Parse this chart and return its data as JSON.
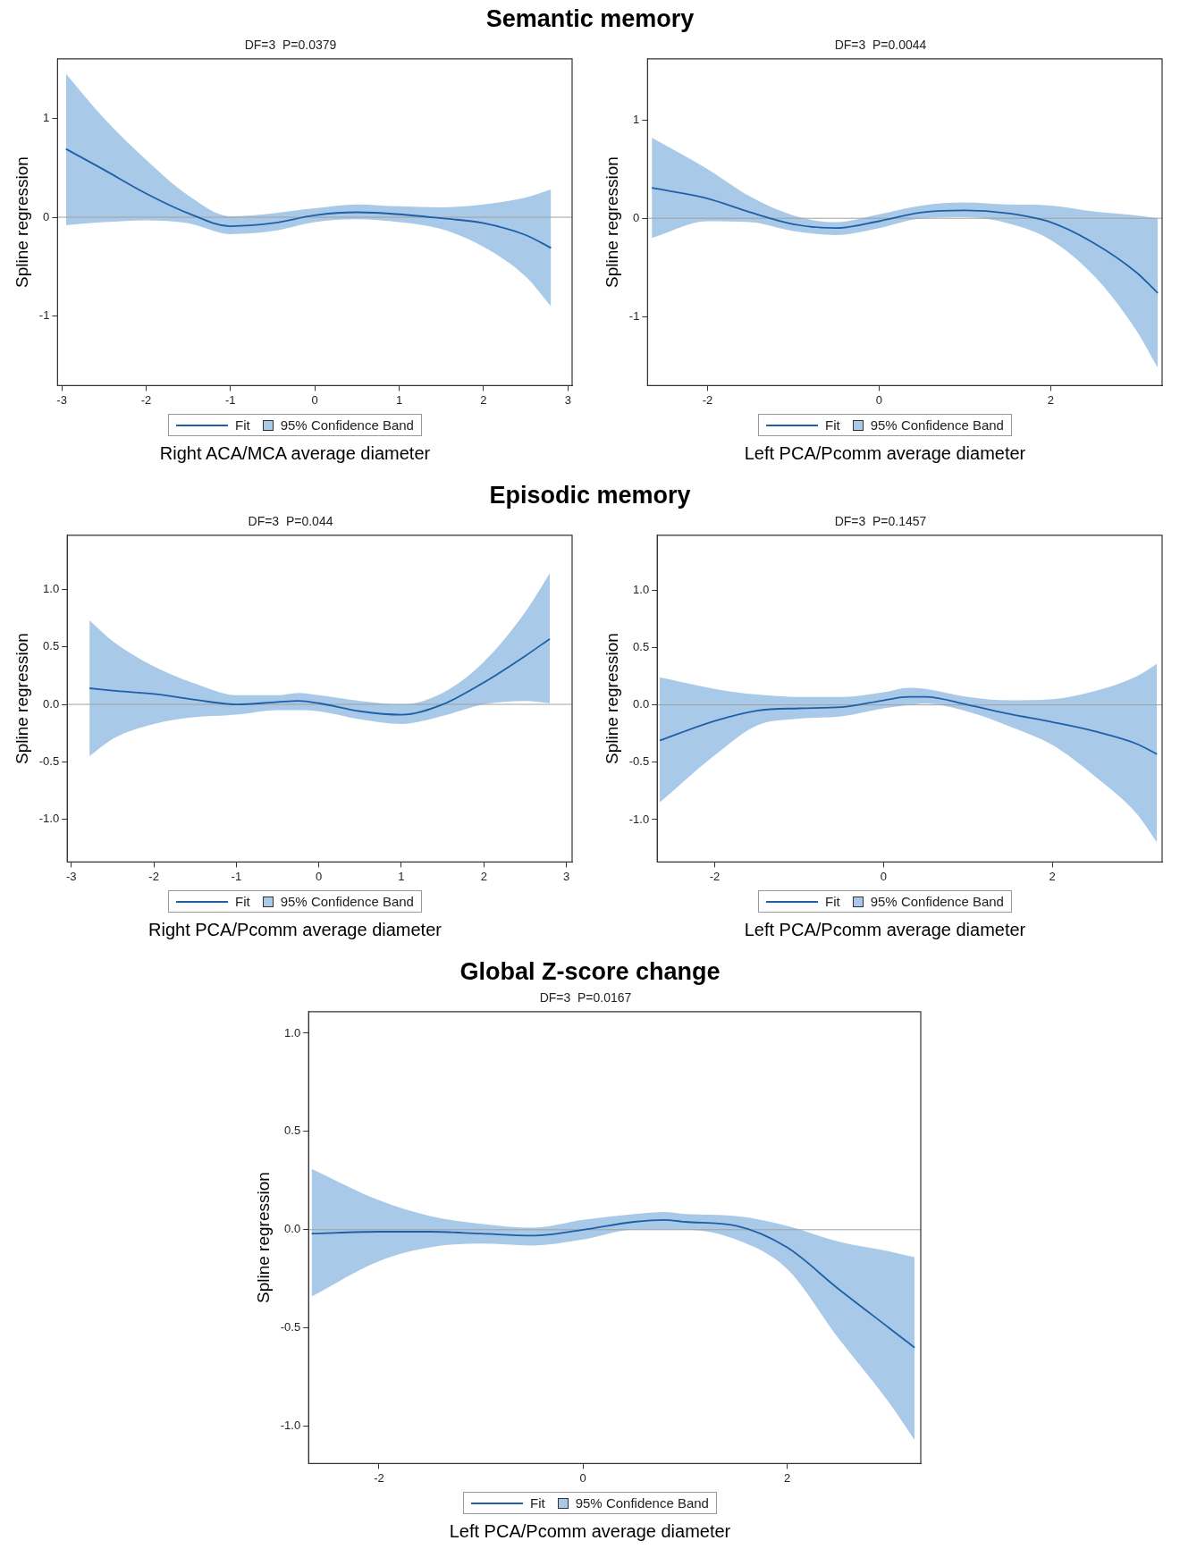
{
  "chart_data": [
    {
      "type": "line",
      "title": "Semantic memory",
      "subtitle": "DF=3  P=0.0379",
      "xlabel": "Right ACA/MCA average diameter",
      "ylabel": "Spline regression",
      "legend": "bottom",
      "grid": false,
      "annotations": [
        "95% Confidence Band"
      ],
      "x": [
        -2.95,
        -2.5,
        -2,
        -1.5,
        -1,
        -0.5,
        0,
        0.5,
        1,
        1.5,
        2,
        2.5,
        2.8
      ],
      "series": [
        {
          "name": "Fit",
          "color": "#1f5fa8",
          "values": [
            0.69,
            0.48,
            0.24,
            0.04,
            -0.09,
            -0.06,
            0.02,
            0.05,
            0.03,
            -0.01,
            -0.06,
            -0.18,
            -0.31
          ],
          "lower": [
            -0.08,
            -0.05,
            -0.03,
            -0.06,
            -0.17,
            -0.14,
            -0.05,
            -0.02,
            -0.05,
            -0.12,
            -0.3,
            -0.6,
            -0.9
          ],
          "upper": [
            1.45,
            1.0,
            0.58,
            0.22,
            0.01,
            0.04,
            0.09,
            0.13,
            0.11,
            0.1,
            0.13,
            0.2,
            0.28
          ]
        }
      ],
      "xlim": [
        -3.05,
        3.05
      ],
      "ylim": [
        -1.7,
        1.6
      ],
      "xticks": [
        -3,
        -2,
        -1,
        0,
        1,
        2,
        3
      ],
      "yticks": [
        -1,
        0,
        1
      ],
      "ref_lines": [
        {
          "axis": "y",
          "value": 0,
          "color": "#a0a0a0"
        }
      ]
    },
    {
      "type": "line",
      "subtitle": "DF=3  P=0.0044",
      "xlabel": "Left PCA/Pcomm average diameter",
      "ylabel": "Spline regression",
      "legend": "bottom",
      "grid": false,
      "annotations": [
        "95% Confidence Band"
      ],
      "x": [
        -2.65,
        -2,
        -1.5,
        -1,
        -0.5,
        0,
        0.5,
        1,
        1.5,
        2,
        2.5,
        3,
        3.25
      ],
      "series": [
        {
          "name": "Fit",
          "color": "#1f5fa8",
          "values": [
            0.31,
            0.2,
            0.06,
            -0.06,
            -0.1,
            -0.03,
            0.06,
            0.08,
            0.05,
            -0.04,
            -0.25,
            -0.55,
            -0.76
          ],
          "lower": [
            -0.2,
            -0.03,
            -0.04,
            -0.13,
            -0.17,
            -0.1,
            0,
            0.01,
            -0.05,
            -0.22,
            -0.58,
            -1.14,
            -1.52
          ],
          "upper": [
            0.82,
            0.5,
            0.22,
            0.03,
            -0.04,
            0.04,
            0.13,
            0.16,
            0.14,
            0.13,
            0.07,
            0.03,
            0
          ]
        }
      ],
      "xlim": [
        -2.7,
        3.3
      ],
      "ylim": [
        -1.7,
        1.62
      ],
      "xticks": [
        -2,
        0,
        2
      ],
      "yticks": [
        -1,
        0,
        1
      ],
      "ref_lines": [
        {
          "axis": "y",
          "value": 0,
          "color": "#a0a0a0"
        }
      ]
    },
    {
      "type": "line",
      "title": "Episodic memory",
      "subtitle": "DF=3  P=0.044",
      "xlabel": "Right PCA/Pcomm average diameter",
      "ylabel": "Spline regression",
      "legend": "bottom",
      "grid": false,
      "annotations": [
        "95% Confidence Band"
      ],
      "x": [
        -2.78,
        -2.5,
        -2,
        -1.5,
        -1,
        -0.5,
        -0.25,
        0,
        0.5,
        1,
        1.5,
        2,
        2.5,
        2.8
      ],
      "series": [
        {
          "name": "Fit",
          "color": "#1f5fa8",
          "values": [
            0.14,
            0.12,
            0.09,
            0.04,
            0,
            0.02,
            0.03,
            0.01,
            -0.06,
            -0.09,
            0,
            0.19,
            0.42,
            0.57
          ],
          "lower": [
            -0.45,
            -0.3,
            -0.17,
            -0.11,
            -0.09,
            -0.05,
            -0.05,
            -0.06,
            -0.13,
            -0.17,
            -0.1,
            0,
            0.03,
            0.01
          ],
          "upper": [
            0.73,
            0.55,
            0.33,
            0.18,
            0.08,
            0.08,
            0.1,
            0.08,
            0.03,
            0,
            0.1,
            0.37,
            0.8,
            1.14
          ]
        }
      ],
      "xlim": [
        -3.05,
        3.07
      ],
      "ylim": [
        -1.37,
        1.47
      ],
      "xticks": [
        -3,
        -2,
        -1,
        0,
        1,
        2,
        3
      ],
      "yticks": [
        {
          "value": -1,
          "label": "-1.0"
        },
        -0.5,
        {
          "value": 0,
          "label": "0.0"
        },
        0.5,
        {
          "value": 1,
          "label": "1.0"
        }
      ],
      "ref_lines": [
        {
          "axis": "y",
          "value": 0,
          "color": "#a0a0a0"
        }
      ]
    },
    {
      "type": "line",
      "subtitle": "DF=3  P=0.1457",
      "xlabel": "Left PCA/Pcomm average diameter",
      "ylabel": "Spline regression",
      "legend": "bottom",
      "grid": false,
      "annotations": [
        "95% Confidence Band"
      ],
      "x": [
        -2.65,
        -2,
        -1.5,
        -1,
        -0.5,
        0,
        0.3,
        0.5,
        1,
        1.5,
        2,
        2.5,
        3,
        3.24
      ],
      "series": [
        {
          "name": "Fit",
          "color": "#1f5fa8",
          "values": [
            -0.31,
            -0.14,
            -0.05,
            -0.03,
            -0.02,
            0.04,
            0.07,
            0.07,
            0,
            -0.08,
            -0.15,
            -0.23,
            -0.34,
            -0.43
          ],
          "lower": [
            -0.85,
            -0.44,
            -0.18,
            -0.12,
            -0.1,
            -0.03,
            0,
            0.01,
            -0.06,
            -0.19,
            -0.35,
            -0.62,
            -0.95,
            -1.2
          ],
          "upper": [
            0.24,
            0.14,
            0.09,
            0.07,
            0.07,
            0.11,
            0.15,
            0.14,
            0.07,
            0.04,
            0.05,
            0.12,
            0.25,
            0.36
          ]
        }
      ],
      "xlim": [
        -2.68,
        3.3
      ],
      "ylim": [
        -1.37,
        1.48
      ],
      "xticks": [
        -2,
        0,
        2
      ],
      "yticks": [
        {
          "value": -1,
          "label": "-1.0"
        },
        -0.5,
        {
          "value": 0,
          "label": "0.0"
        },
        0.5,
        {
          "value": 1,
          "label": "1.0"
        }
      ],
      "ref_lines": [
        {
          "axis": "y",
          "value": 0,
          "color": "#a0a0a0"
        }
      ]
    },
    {
      "type": "line",
      "title": "Global Z-score change",
      "subtitle": "DF=3  P=0.0167",
      "xlabel": "Left PCA/Pcomm average diameter",
      "ylabel": "Spline regression",
      "legend": "bottom",
      "grid": false,
      "annotations": [
        "95% Confidence Band"
      ],
      "x": [
        -2.66,
        -2,
        -1.5,
        -1,
        -0.5,
        0,
        0.5,
        0.8,
        1,
        1.5,
        2,
        2.5,
        3,
        3.25
      ],
      "series": [
        {
          "name": "Fit",
          "color": "#1f5fa8",
          "values": [
            -0.02,
            -0.01,
            -0.01,
            -0.02,
            -0.03,
            0,
            0.04,
            0.05,
            0.04,
            0.02,
            -0.09,
            -0.3,
            -0.5,
            -0.6
          ],
          "lower": [
            -0.34,
            -0.16,
            -0.09,
            -0.07,
            -0.08,
            -0.05,
            0,
            0,
            0,
            -0.05,
            -0.2,
            -0.55,
            -0.88,
            -1.07
          ],
          "upper": [
            0.31,
            0.15,
            0.07,
            0.03,
            0.01,
            0.05,
            0.08,
            0.09,
            0.08,
            0.07,
            0.02,
            -0.06,
            -0.11,
            -0.14
          ]
        }
      ],
      "xlim": [
        -2.69,
        3.31
      ],
      "ylim": [
        -1.19,
        1.11
      ],
      "xticks": [
        -2,
        0,
        2
      ],
      "yticks": [
        {
          "value": -1,
          "label": "-1.0"
        },
        -0.5,
        {
          "value": 0,
          "label": "0.0"
        },
        0.5,
        {
          "value": 1,
          "label": "1.0"
        }
      ],
      "ref_lines": [
        {
          "axis": "y",
          "value": 0,
          "color": "#a0a0a0"
        }
      ]
    }
  ]
}
